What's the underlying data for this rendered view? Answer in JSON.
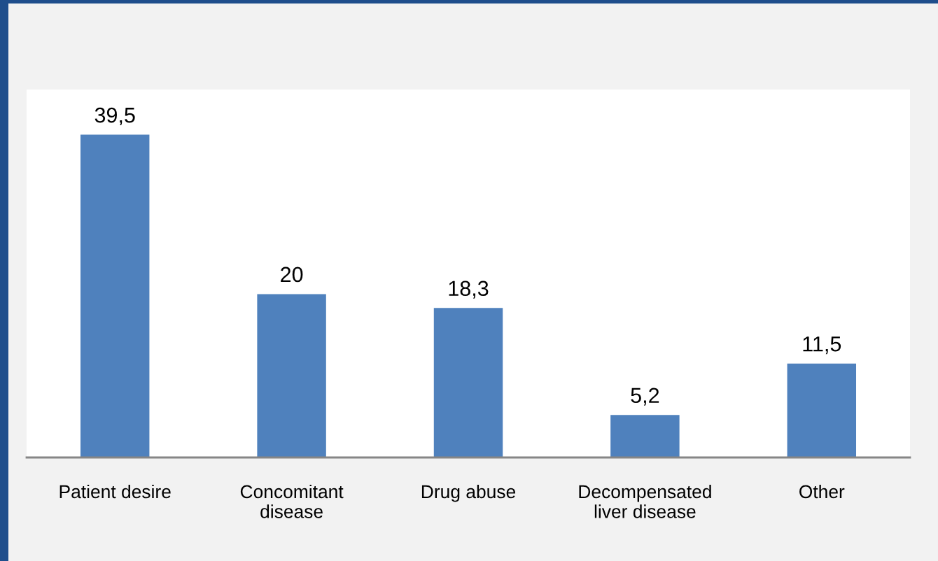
{
  "chart_data": {
    "type": "bar",
    "categories": [
      "Patient desire",
      "Concomitant\ndisease",
      "Drug abuse",
      "Decompensated\nliver disease",
      "Other"
    ],
    "values": [
      39.5,
      20,
      18.3,
      5.2,
      11.5
    ],
    "value_labels": [
      "39,5",
      "20",
      "18,3",
      "5,2",
      "11,5"
    ],
    "color": "#4f81bd",
    "grid": false,
    "legend": false,
    "tick_labels": "x"
  }
}
